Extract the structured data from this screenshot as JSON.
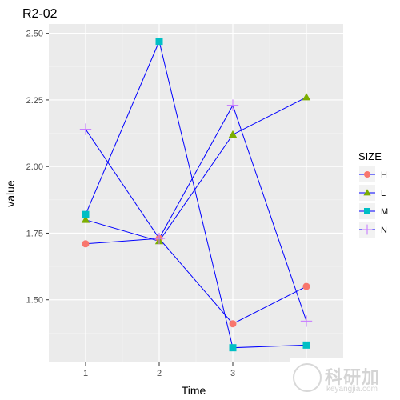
{
  "chart_data": {
    "type": "line",
    "title": "R2-02",
    "xlabel": "Time",
    "ylabel": "value",
    "x_ticks": [
      1,
      2,
      3
    ],
    "xlim": [
      0.5,
      4.5
    ],
    "y_ticks": [
      1.5,
      1.75,
      2.0,
      2.25,
      2.5
    ],
    "y_tick_labels": [
      "1.50",
      "1.75",
      "2.00",
      "2.25",
      "2.50"
    ],
    "ylim": [
      1.265,
      2.535
    ],
    "grid": true,
    "legend": {
      "title": "SIZE",
      "placement": "right"
    },
    "line_color": "#0000ff",
    "series": [
      {
        "name": "H",
        "color": "#f8766d",
        "shape": "circle",
        "x": [
          1,
          2,
          3,
          4
        ],
        "values": [
          1.71,
          1.73,
          1.41,
          1.55
        ]
      },
      {
        "name": "L",
        "color": "#7cae00",
        "shape": "triangle",
        "x": [
          1,
          2,
          3,
          4
        ],
        "values": [
          1.8,
          1.72,
          2.12,
          2.26
        ]
      },
      {
        "name": "M",
        "color": "#00bfc4",
        "shape": "square",
        "x": [
          1,
          2,
          3,
          4
        ],
        "values": [
          1.82,
          2.47,
          1.32,
          1.33
        ]
      },
      {
        "name": "N",
        "color": "#c77cff",
        "shape": "plus",
        "x": [
          1,
          2,
          3,
          4
        ],
        "values": [
          2.14,
          1.73,
          2.23,
          1.42
        ]
      }
    ]
  },
  "watermark": {
    "text": "科研加",
    "subtext": "keyangjia.com"
  }
}
